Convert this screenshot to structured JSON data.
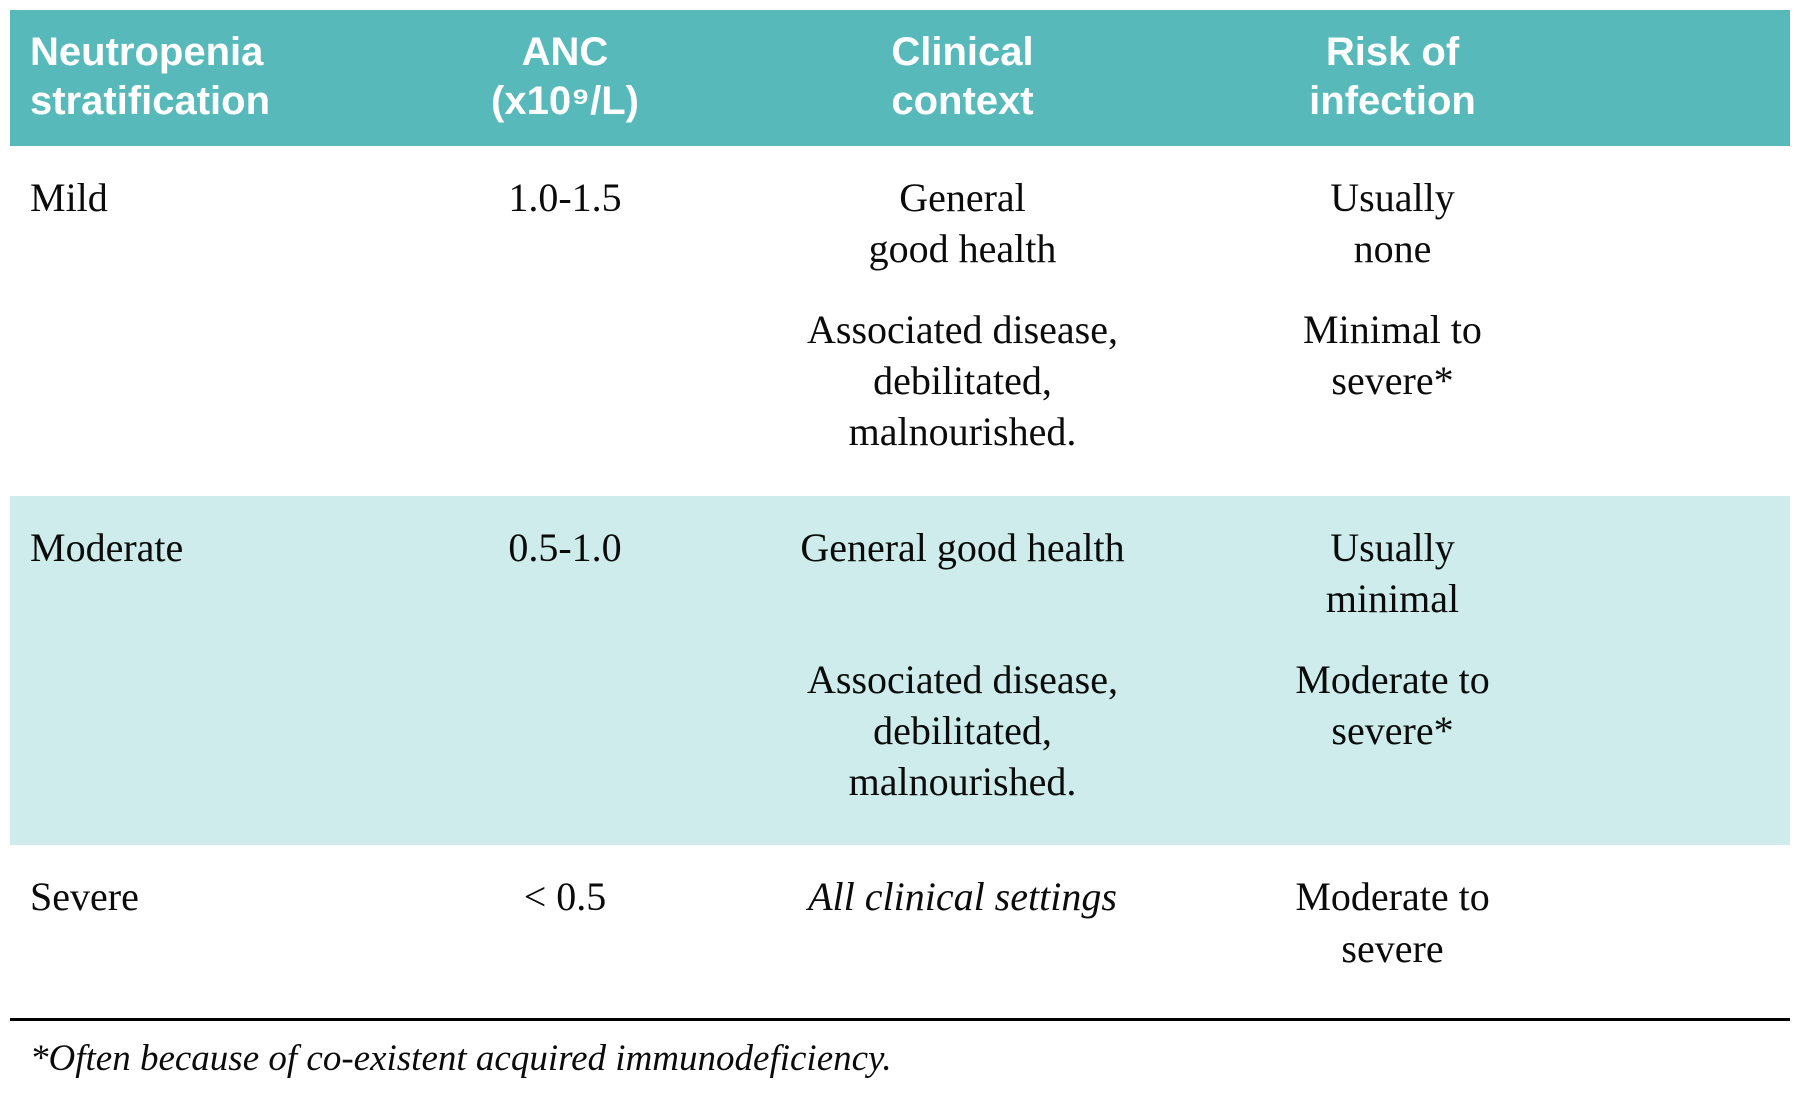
{
  "colors": {
    "header_bg": "#57b9ba",
    "alt_row_bg": "#cdeceb",
    "header_text": "#ffffff",
    "body_text": "#0b0b0b"
  },
  "table": {
    "headers": {
      "stratification": "Neutropenia\nstratification",
      "anc": "ANC\n(x10⁹/L)",
      "context": "Clinical\ncontext",
      "risk": "Risk of\ninfection"
    },
    "rows": [
      {
        "name": "Mild",
        "anc": "1.0-1.5",
        "entries": [
          {
            "context": "General\ngood health",
            "risk": "Usually\nnone"
          },
          {
            "context": "Associated disease,\ndebilitated, malnourished.",
            "risk": "Minimal to\nsevere*"
          }
        ]
      },
      {
        "name": "Moderate",
        "anc": "0.5-1.0",
        "entries": [
          {
            "context": "General good health",
            "risk": "Usually\nminimal"
          },
          {
            "context": "Associated disease,\ndebilitated, malnourished.",
            "risk": "Moderate to\nsevere*"
          }
        ]
      },
      {
        "name": "Severe",
        "anc": "< 0.5",
        "entries": [
          {
            "context": "All clinical settings",
            "risk": "Moderate to\nsevere"
          }
        ]
      }
    ],
    "footnote": "*Often because of co-existent acquired immunodeficiency."
  }
}
